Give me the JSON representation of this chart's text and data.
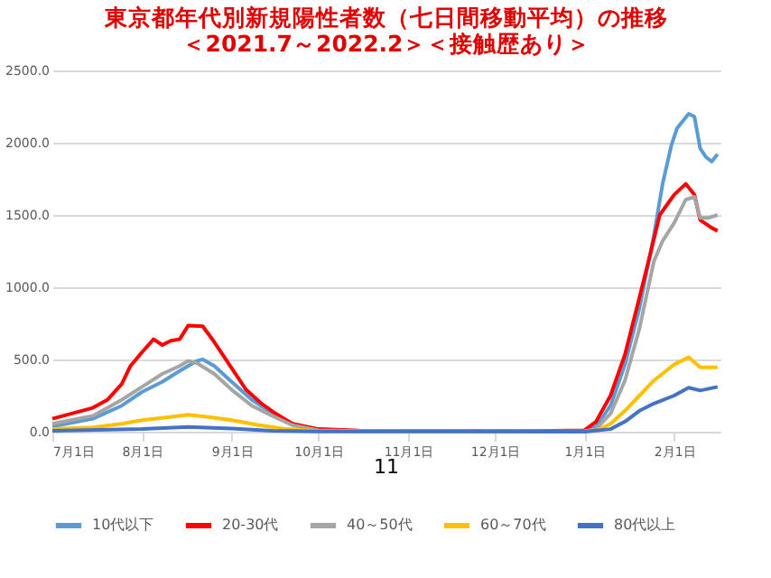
{
  "chart_data": {
    "type": "line",
    "title": "東京都年代別新規陽性者数（七日間移動平均）の推移",
    "subtitle": "＜2021.7～2022.2＞＜接触歴あり＞",
    "annotations": [
      "11"
    ],
    "xlim": [
      "2021-07-01",
      "2022-02-17"
    ],
    "xticks": [
      {
        "value": "2021-07-01",
        "label": "7月1日"
      },
      {
        "value": "2021-08-01",
        "label": "8月1日"
      },
      {
        "value": "2021-09-01",
        "label": "9月1日"
      },
      {
        "value": "2021-10-01",
        "label": "10月1日"
      },
      {
        "value": "2021-11-01",
        "label": "11月1日"
      },
      {
        "value": "2021-12-01",
        "label": "12月1日"
      },
      {
        "value": "2022-01-01",
        "label": "1月1日"
      },
      {
        "value": "2022-02-01",
        "label": "2月1日"
      }
    ],
    "ylim": [
      0,
      2500
    ],
    "yticks": [
      {
        "value": 0,
        "label": "0.0"
      },
      {
        "value": 500,
        "label": "500.0"
      },
      {
        "value": 1000,
        "label": "1000.0"
      },
      {
        "value": 1500,
        "label": "1500.0"
      },
      {
        "value": 2000,
        "label": "2000.0"
      },
      {
        "value": 2500,
        "label": "2500.0"
      }
    ],
    "grid": "y",
    "legend": "bottom",
    "marker": "none",
    "line_style": "solid",
    "series": [
      {
        "name": "10代以下",
        "color": "#5b9bd5",
        "x": [
          "2021-07-01",
          "2021-07-15",
          "2021-07-25",
          "2021-08-01",
          "2021-08-08",
          "2021-08-14",
          "2021-08-20",
          "2021-08-22",
          "2021-08-26",
          "2021-09-01",
          "2021-09-08",
          "2021-09-15",
          "2021-09-22",
          "2021-10-01",
          "2021-10-15",
          "2021-11-15",
          "2021-12-15",
          "2022-01-01",
          "2022-01-05",
          "2022-01-10",
          "2022-01-15",
          "2022-01-20",
          "2022-01-25",
          "2022-01-28",
          "2022-01-31",
          "2022-02-02",
          "2022-02-04",
          "2022-02-06",
          "2022-02-08",
          "2022-02-10",
          "2022-02-12",
          "2022-02-14",
          "2022-02-16"
        ],
        "values": [
          35,
          90,
          180,
          275,
          345,
          420,
          490,
          500,
          455,
          345,
          220,
          130,
          55,
          15,
          5,
          2,
          2,
          0,
          35,
          180,
          465,
          855,
          1360,
          1715,
          1980,
          2100,
          2150,
          2200,
          2180,
          1960,
          1900,
          1870,
          1920
        ]
      },
      {
        "name": "20-30代",
        "color": "#ff0000",
        "x": [
          "2021-07-01",
          "2021-07-15",
          "2021-07-20",
          "2021-07-25",
          "2021-07-28",
          "2021-08-01",
          "2021-08-05",
          "2021-08-08",
          "2021-08-11",
          "2021-08-14",
          "2021-08-17",
          "2021-08-22",
          "2021-08-26",
          "2021-09-01",
          "2021-09-06",
          "2021-09-11",
          "2021-09-16",
          "2021-09-22",
          "2021-10-01",
          "2021-10-15",
          "2021-11-15",
          "2021-12-15",
          "2022-01-01",
          "2022-01-05",
          "2022-01-10",
          "2022-01-15",
          "2022-01-20",
          "2022-01-24",
          "2022-01-27",
          "2022-02-01",
          "2022-02-05",
          "2022-02-08",
          "2022-02-10",
          "2022-02-14",
          "2022-02-16"
        ],
        "values": [
          90,
          165,
          220,
          330,
          455,
          550,
          640,
          600,
          630,
          640,
          735,
          730,
          620,
          440,
          290,
          200,
          128,
          55,
          18,
          8,
          5,
          4,
          10,
          70,
          250,
          535,
          930,
          1250,
          1500,
          1640,
          1715,
          1640,
          1465,
          1410,
          1390
        ]
      },
      {
        "name": "40～50代",
        "color": "#a5a5a5",
        "x": [
          "2021-07-01",
          "2021-07-15",
          "2021-07-25",
          "2021-08-01",
          "2021-08-08",
          "2021-08-14",
          "2021-08-17",
          "2021-08-20",
          "2021-08-26",
          "2021-09-01",
          "2021-09-08",
          "2021-09-15",
          "2021-09-22",
          "2021-10-01",
          "2021-10-15",
          "2021-11-15",
          "2021-12-15",
          "2022-01-01",
          "2022-01-05",
          "2022-01-10",
          "2022-01-15",
          "2022-01-20",
          "2022-01-25",
          "2022-01-28",
          "2022-02-01",
          "2022-02-05",
          "2022-02-08",
          "2022-02-10",
          "2022-02-13",
          "2022-02-16"
        ],
        "values": [
          55,
          110,
          220,
          310,
          400,
          455,
          490,
          475,
          400,
          290,
          180,
          110,
          45,
          10,
          5,
          3,
          2,
          3,
          18,
          125,
          355,
          715,
          1180,
          1320,
          1445,
          1605,
          1625,
          1480,
          1480,
          1500
        ]
      },
      {
        "name": "60～70代",
        "color": "#ffc000",
        "x": [
          "2021-07-01",
          "2021-07-15",
          "2021-07-25",
          "2021-08-01",
          "2021-08-10",
          "2021-08-17",
          "2021-08-24",
          "2021-09-01",
          "2021-09-10",
          "2021-09-20",
          "2021-10-01",
          "2021-11-15",
          "2022-01-01",
          "2022-01-05",
          "2022-01-10",
          "2022-01-15",
          "2022-01-20",
          "2022-01-25",
          "2022-02-01",
          "2022-02-06",
          "2022-02-10",
          "2022-02-16"
        ],
        "values": [
          18,
          30,
          55,
          80,
          100,
          117,
          102,
          80,
          47,
          18,
          5,
          2,
          1,
          7,
          55,
          145,
          250,
          355,
          465,
          515,
          445,
          445
        ]
      },
      {
        "name": "80代以上",
        "color": "#4472c4",
        "x": [
          "2021-07-01",
          "2021-08-01",
          "2021-08-17",
          "2021-09-01",
          "2021-09-15",
          "2021-10-01",
          "2021-11-15",
          "2022-01-01",
          "2022-01-10",
          "2022-01-15",
          "2022-01-20",
          "2022-01-25",
          "2022-02-01",
          "2022-02-06",
          "2022-02-10",
          "2022-02-16"
        ],
        "values": [
          7,
          18,
          33,
          22,
          7,
          2,
          1,
          0,
          18,
          70,
          145,
          195,
          250,
          305,
          285,
          310
        ]
      }
    ]
  }
}
